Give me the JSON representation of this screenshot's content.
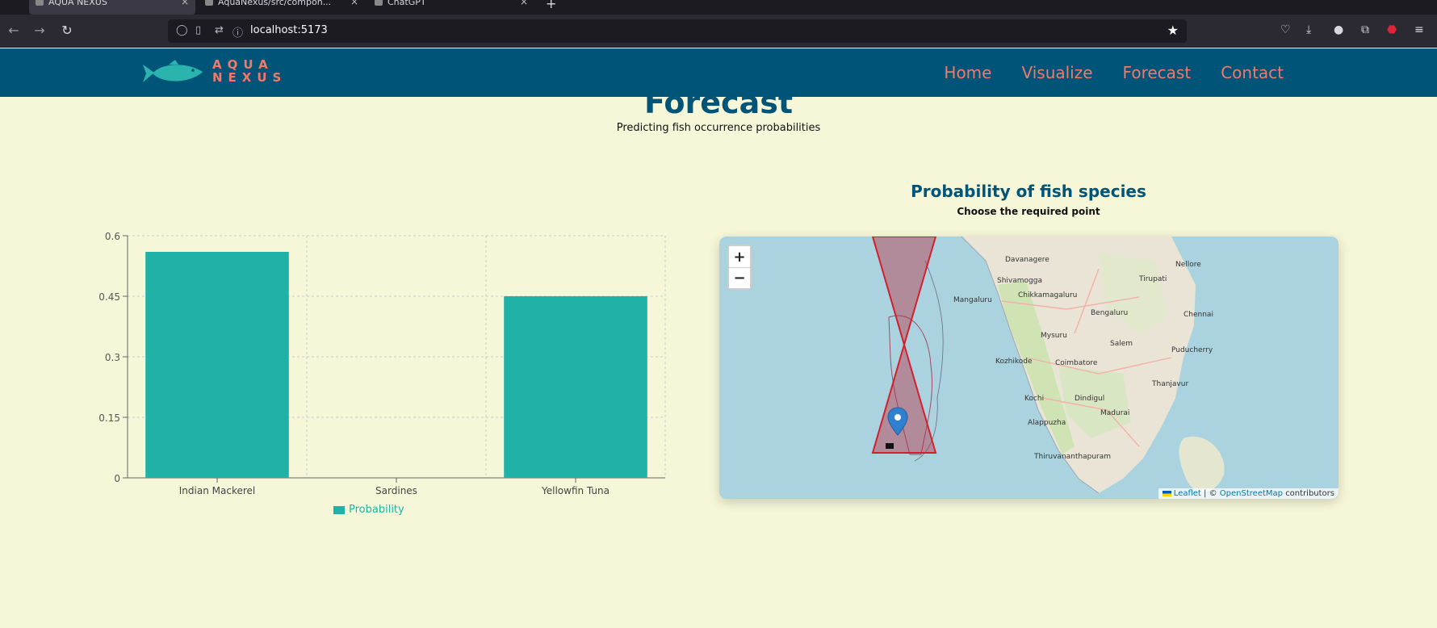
{
  "browser": {
    "tabs": [
      {
        "label": "AQUA NEXUS",
        "active": true
      },
      {
        "label": "AquaNexus/src/compon...",
        "active": false
      },
      {
        "label": "ChatGPT",
        "active": false
      }
    ],
    "url": "localhost:5173"
  },
  "header": {
    "logo_line1": "AQUA",
    "logo_line2": "NEXUS",
    "nav": [
      "Home",
      "Visualize",
      "Forecast",
      "Contact"
    ]
  },
  "page": {
    "title": "Forecast",
    "subtitle": "Predicting fish occurrence probabilities"
  },
  "chart_data": {
    "type": "bar",
    "categories": [
      "Indian Mackerel",
      "Sardines",
      "Yellowfin Tuna"
    ],
    "series": [
      {
        "name": "Probability",
        "values": [
          0.56,
          0,
          0.45
        ]
      }
    ],
    "ylim": [
      0,
      0.6
    ],
    "yticks": [
      "0",
      "0.15",
      "0.3",
      "0.45",
      "0.6"
    ],
    "grid": true,
    "legend": "bottom",
    "color": "#20b2a6"
  },
  "map": {
    "title": "Probability of fish species",
    "subtitle": "Choose the required point",
    "zoom_in": "+",
    "zoom_out": "−",
    "attribution_leaflet": "Leaflet",
    "attribution_sep": "| ©",
    "attribution_osm": "OpenStreetMap",
    "attribution_tail": "contributors",
    "place_labels": [
      "Davanagere",
      "Shivamogga",
      "Mangaluru",
      "Chikkamagaluru",
      "Bengaluru",
      "Mysuru",
      "Kozhikode",
      "Coimbatore",
      "Salem",
      "Kochi",
      "Madurai",
      "Thiruvananthapuram",
      "Chennai",
      "Puducherry",
      "Thanjavur",
      "Alappuzha",
      "Dindigul",
      "Tirupati",
      "Nellore"
    ]
  }
}
